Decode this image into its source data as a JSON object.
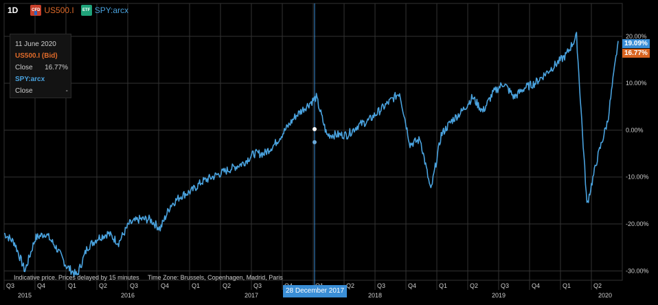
{
  "header": {
    "timeframe": "1D",
    "cfd_badge": "CFD",
    "etf_badge": "ETF",
    "symbol_primary": "US500.I",
    "symbol_secondary": "SPY:arcx"
  },
  "info_box": {
    "date": "11 June 2020",
    "primary_label": "US500.I (Bid)",
    "close_label": "Close",
    "close_value": "16.77%",
    "secondary_label": "SPY:arcx",
    "close_label_2": "Close",
    "close_value_2": "-"
  },
  "footer": {
    "indicative": "Indicative price. Prices delayed by 15 minutes",
    "timezone": "Time Zone: Brussels, Copenhagen, Madrid, Paris"
  },
  "crosshair": {
    "label": "28 December 2017"
  },
  "last_values": {
    "secondary": "19.09%",
    "primary": "16.77%"
  },
  "colors": {
    "line": "#4aa3df",
    "orange": "#d8631f",
    "grid": "#333333"
  },
  "chart_data": {
    "type": "line",
    "y_unit": "%",
    "ylim": [
      -32,
      27
    ],
    "y_ticks": [
      {
        "value": 20,
        "label": "20.00%"
      },
      {
        "value": 10,
        "label": "10.00%"
      },
      {
        "value": 0,
        "label": "0.00%"
      },
      {
        "value": -10,
        "label": "-10.00%"
      },
      {
        "value": -20,
        "label": "-20.00%"
      },
      {
        "value": -30,
        "label": "-30.00%"
      }
    ],
    "x_quarter_ticks": [
      "Q3",
      "Q4",
      "Q1",
      "Q2",
      "Q3",
      "Q4",
      "Q1",
      "Q2",
      "Q3",
      "Q4",
      "Q1",
      "Q2",
      "Q3",
      "Q4",
      "Q1",
      "Q2",
      "Q3",
      "Q4",
      "Q1",
      "Q2"
    ],
    "x_year_labels": [
      "2015",
      "2016",
      "2017",
      "2018",
      "2019",
      "2020"
    ],
    "grid": true,
    "crosshair_date": "2017-12-28",
    "series": [
      {
        "name": "SPY:arcx",
        "x": [
          "2015-07",
          "2015-08",
          "2015-09",
          "2015-10",
          "2015-11",
          "2015-12",
          "2016-01",
          "2016-02",
          "2016-03",
          "2016-04",
          "2016-05",
          "2016-06",
          "2016-07",
          "2016-08",
          "2016-09",
          "2016-10",
          "2016-11",
          "2016-12",
          "2017-01",
          "2017-02",
          "2017-03",
          "2017-04",
          "2017-05",
          "2017-06",
          "2017-07",
          "2017-08",
          "2017-09",
          "2017-10",
          "2017-11",
          "2017-12",
          "2018-01",
          "2018-02",
          "2018-03",
          "2018-04",
          "2018-05",
          "2018-06",
          "2018-07",
          "2018-08",
          "2018-09",
          "2018-10",
          "2018-11",
          "2018-12",
          "2019-01",
          "2019-02",
          "2019-03",
          "2019-04",
          "2019-05",
          "2019-06",
          "2019-07",
          "2019-08",
          "2019-09",
          "2019-10",
          "2019-11",
          "2019-12",
          "2020-01",
          "2020-02",
          "2020-03",
          "2020-04",
          "2020-05",
          "2020-06"
        ],
        "values": [
          -22,
          -24,
          -30,
          -23,
          -22,
          -25,
          -29,
          -31,
          -25,
          -23,
          -22,
          -24,
          -20,
          -19,
          -19,
          -21,
          -16,
          -14,
          -13,
          -11,
          -10,
          -9,
          -8,
          -7,
          -5,
          -5,
          -3,
          0,
          3,
          5,
          7,
          -1,
          -1,
          -1,
          1,
          2,
          4,
          6,
          8,
          -3,
          -2,
          -13,
          -1,
          2,
          4,
          7,
          4,
          8,
          10,
          7,
          9,
          10,
          12,
          14,
          16,
          20,
          -16,
          -6,
          2,
          19
        ]
      }
    ]
  }
}
